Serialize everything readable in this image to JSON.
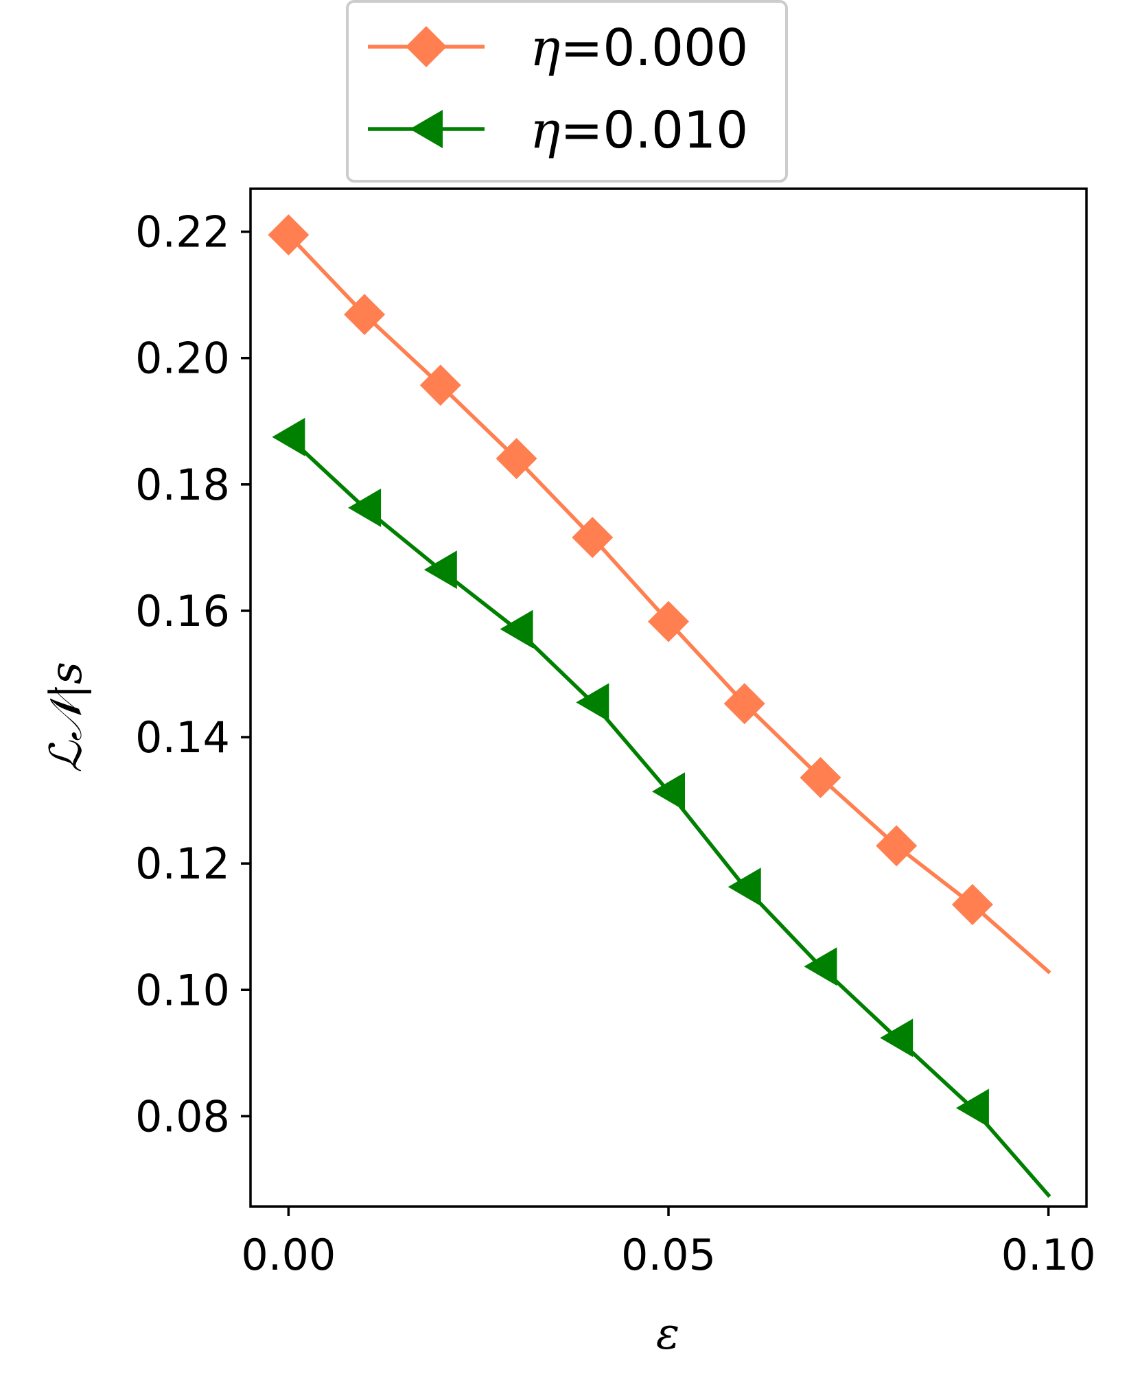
{
  "chart_data": {
    "type": "line",
    "xlabel": "ε",
    "ylabel": "ℒ𝒩|s",
    "xlim": [
      -0.005,
      0.105
    ],
    "ylim": [
      0.0657,
      0.2268
    ],
    "xticks": [
      0.0,
      0.05,
      0.1
    ],
    "xtick_labels": [
      "0.00",
      "0.05",
      "0.10"
    ],
    "yticks": [
      0.08,
      0.1,
      0.12,
      0.14,
      0.16,
      0.18,
      0.2,
      0.22
    ],
    "ytick_labels": [
      "0.08",
      "0.10",
      "0.12",
      "0.14",
      "0.16",
      "0.18",
      "0.20",
      "0.22"
    ],
    "legend_position": "top-center (above plot)",
    "grid": false,
    "series": [
      {
        "name": "η=0.000",
        "name_prefix": "η",
        "name_suffix": "=0.000",
        "color": "#ff7f50",
        "marker": "diamond",
        "x": [
          0.0,
          0.01,
          0.02,
          0.03,
          0.04,
          0.05,
          0.06,
          0.07,
          0.08,
          0.09,
          0.1
        ],
        "y": [
          0.2195,
          0.2069,
          0.1957,
          0.1841,
          0.1716,
          0.1583,
          0.1453,
          0.1336,
          0.1228,
          0.1135,
          0.1029
        ],
        "marker_count": 10
      },
      {
        "name": "η=0.010",
        "name_prefix": "η",
        "name_suffix": "=0.010",
        "color": "#008000",
        "marker": "triangle-left",
        "x": [
          0.0,
          0.01,
          0.02,
          0.03,
          0.04,
          0.05,
          0.06,
          0.07,
          0.08,
          0.09,
          0.1
        ],
        "y": [
          0.1875,
          0.1763,
          0.1665,
          0.1571,
          0.1455,
          0.1314,
          0.1163,
          0.1037,
          0.0924,
          0.0813,
          0.0675
        ],
        "marker_count": 10
      }
    ]
  }
}
